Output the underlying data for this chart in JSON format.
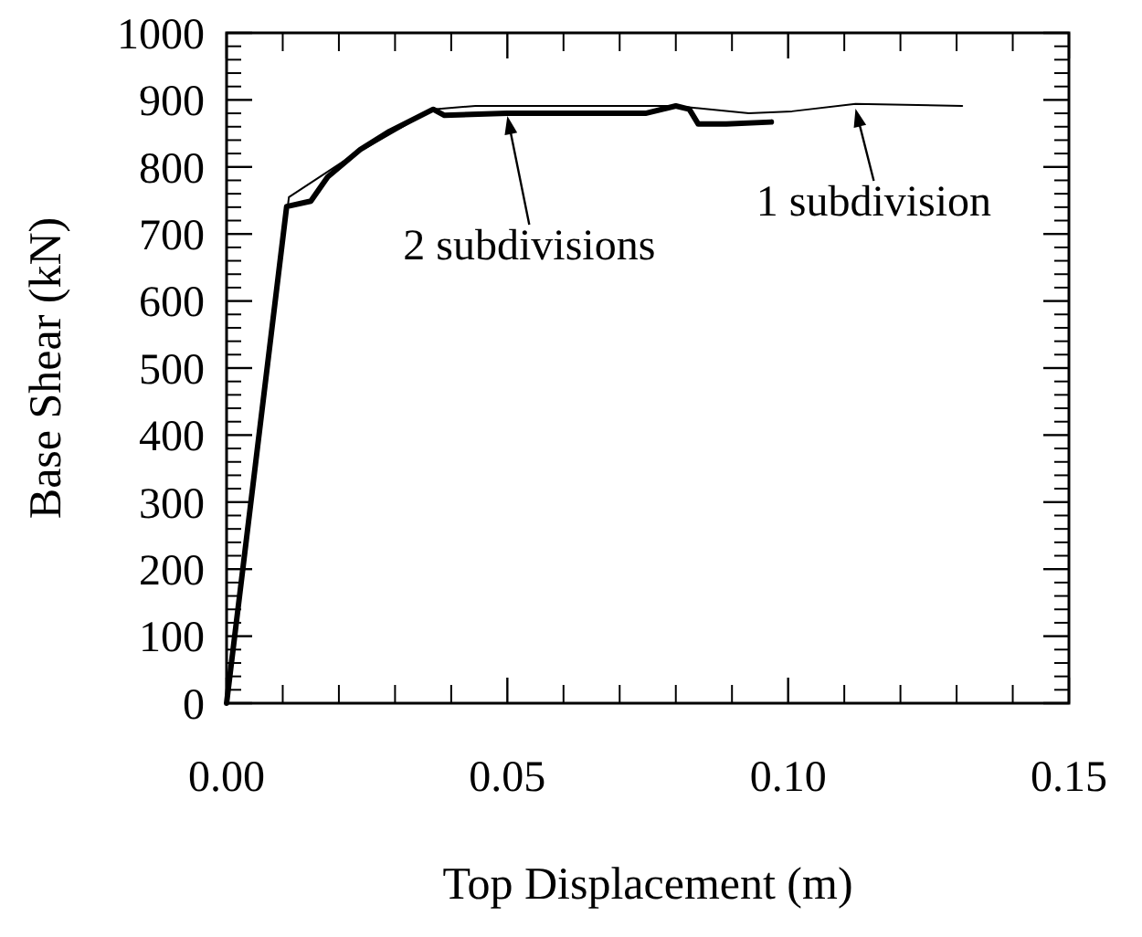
{
  "chart_data": {
    "type": "line",
    "xlabel": "Top Displacement (m)",
    "ylabel": "Base Shear (kN)",
    "xlim": [
      0,
      0.15
    ],
    "ylim": [
      0,
      1000
    ],
    "xticks": [
      {
        "value": 0,
        "label": "0.00"
      },
      {
        "value": 0.05,
        "label": "0.05"
      },
      {
        "value": 0.1,
        "label": "0.10"
      },
      {
        "value": 0.15,
        "label": "0.15"
      }
    ],
    "yticks": [
      0,
      100,
      200,
      300,
      400,
      500,
      600,
      700,
      800,
      900,
      1000
    ],
    "grid": false,
    "legend": false,
    "marker": "none",
    "line_style": "solid",
    "series": [
      {
        "color": "#000000",
        "x": [
          0,
          0.0111,
          0.022,
          0.0368,
          0.0443,
          0.08,
          0.093,
          0.1007,
          0.112,
          0.131
        ],
        "values": [
          0,
          755,
          815,
          886,
          891,
          891,
          880,
          883,
          894,
          891
        ]
      },
      {
        "color": "#000000",
        "x": [
          0,
          0.0107,
          0.015,
          0.018,
          0.0238,
          0.029,
          0.0368,
          0.0388,
          0.05,
          0.0746,
          0.08,
          0.0824,
          0.084,
          0.089,
          0.097
        ],
        "values": [
          0,
          741,
          749,
          785,
          826,
          853,
          886,
          877,
          880,
          880,
          891,
          886,
          864,
          864,
          867
        ]
      }
    ],
    "annotations": [
      {
        "text": "2 subdivisions",
        "x": 0.05,
        "y": 880
      },
      {
        "text": "1 subdivision",
        "x": 0.112,
        "y": 891
      }
    ]
  }
}
